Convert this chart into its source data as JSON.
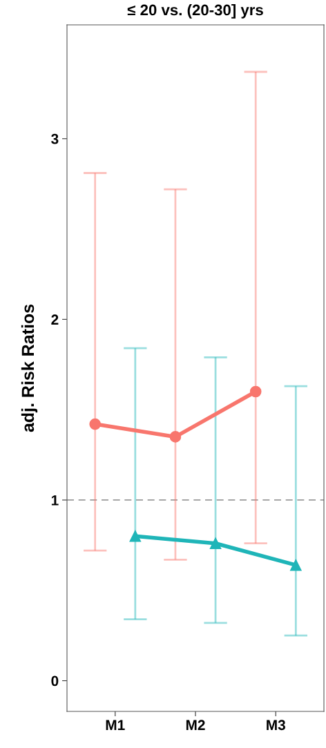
{
  "chart_data": {
    "type": "line",
    "title": "≤ 20 vs. (20-30] yrs",
    "ylabel": "adj. Risk Ratios",
    "categories": [
      "M1",
      "M2",
      "M3"
    ],
    "series": [
      {
        "color": "#f8766d",
        "values": [
          1.42,
          1.35,
          1.6
        ],
        "marker": "circle",
        "errors": [
          [
            0.72,
            2.81
          ],
          [
            0.67,
            2.72
          ],
          [
            0.76,
            3.37
          ]
        ]
      },
      {
        "color": "#1fb5b8",
        "values": [
          0.8,
          0.76,
          0.64
        ],
        "marker": "triangle",
        "errors": [
          [
            0.34,
            1.84
          ],
          [
            0.32,
            1.79
          ],
          [
            0.25,
            1.63
          ]
        ]
      }
    ],
    "ylim": [
      -0.17,
      3.63
    ],
    "yticks": [
      0,
      1,
      2,
      3
    ],
    "ref_lines": [
      {
        "axis": "y",
        "value": 1,
        "color": "#999999",
        "line_style": "dashed"
      }
    ],
    "grid": false,
    "legend": false
  }
}
